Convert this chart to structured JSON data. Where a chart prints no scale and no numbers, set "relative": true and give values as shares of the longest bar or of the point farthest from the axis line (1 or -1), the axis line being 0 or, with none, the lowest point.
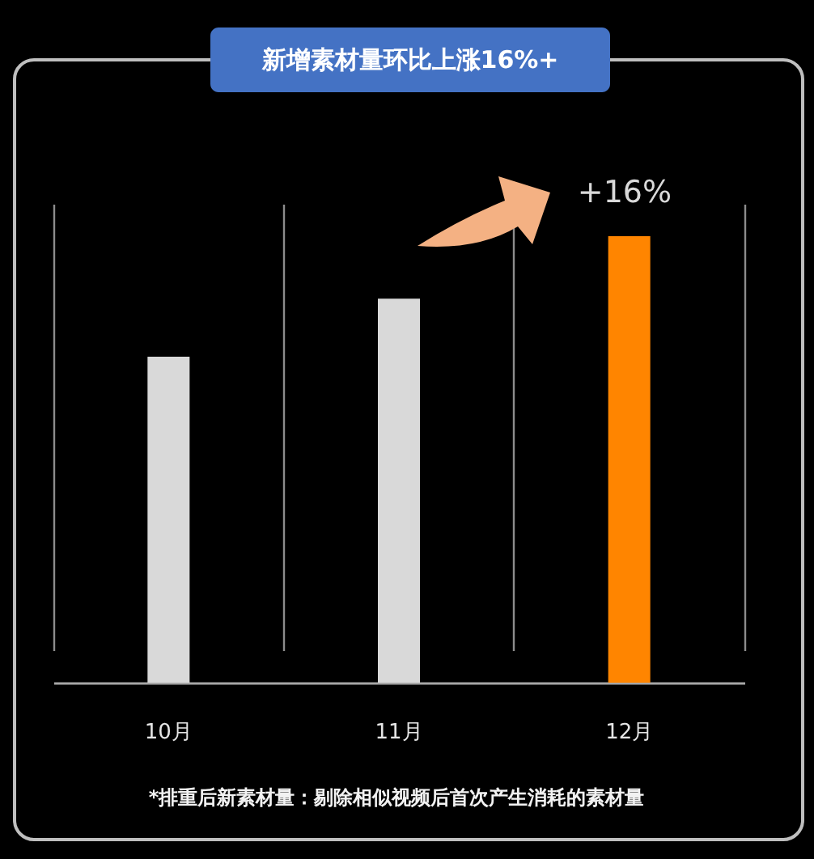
{
  "chart_data": {
    "type": "bar",
    "title": "新增素材量环比上涨16%+",
    "categories": [
      "10月",
      "11月",
      "12月"
    ],
    "values": [
      0.73,
      0.86,
      1
    ],
    "colors": [
      "#d9d9d9",
      "#d9d9d9",
      "#ff8500"
    ],
    "relative": true,
    "grid": "x",
    "annotations": [
      "+16%",
      "*排重后新素材量：剔除相似视频后首次产生消耗的素材量"
    ]
  }
}
